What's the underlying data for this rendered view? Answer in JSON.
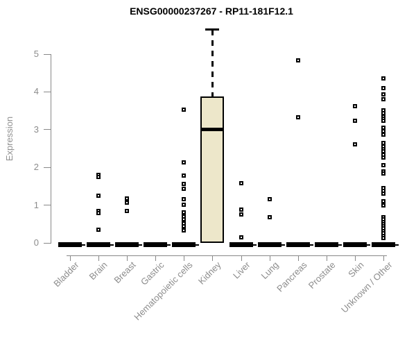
{
  "chart_data": {
    "type": "boxplot",
    "title": "ENSG00000237267 - RP11-181F12.1",
    "ylabel": "Expression",
    "xlabel": "",
    "ylim": [
      0,
      5.8
    ],
    "yticks": [
      0,
      1,
      2,
      3,
      4,
      5
    ],
    "grid": false,
    "legend": "none",
    "marker": "open-square",
    "colors": {
      "box_fill": "#ede7ca",
      "box_line": "#000000",
      "axis": "#888888",
      "tick_label": "#8c8c8c",
      "title": "#000000"
    },
    "categories": [
      "Bladder",
      "Brain",
      "Breast",
      "Gastric",
      "Hematopoietic cells",
      "Kidney",
      "Liver",
      "Lung",
      "Pancreas",
      "Prostate",
      "Skin",
      "Unknown / Other"
    ],
    "boxes": [
      {
        "category": "Bladder",
        "q1": 0,
        "median": 0,
        "q3": 0,
        "whisker_low": 0,
        "whisker_high": 0,
        "outliers": []
      },
      {
        "category": "Brain",
        "q1": 0,
        "median": 0,
        "q3": 0,
        "whisker_low": 0,
        "whisker_high": 0,
        "outliers": [
          1.8,
          1.74,
          1.25,
          0.84,
          0.79,
          0.35
        ]
      },
      {
        "category": "Breast",
        "q1": 0,
        "median": 0,
        "q3": 0,
        "whisker_low": 0,
        "whisker_high": 0,
        "outliers": [
          1.17,
          1.06,
          0.84
        ]
      },
      {
        "category": "Gastric",
        "q1": 0,
        "median": 0,
        "q3": 0,
        "whisker_low": 0,
        "whisker_high": 0,
        "outliers": []
      },
      {
        "category": "Hematopoietic cells",
        "q1": 0,
        "median": 0,
        "q3": 0,
        "whisker_low": 0,
        "whisker_high": 0,
        "outliers": [
          3.53,
          2.14,
          1.79,
          1.57,
          1.43,
          1.15,
          1.02,
          0.8,
          0.7,
          0.63,
          0.52,
          0.44,
          0.33
        ]
      },
      {
        "category": "Kidney",
        "q1": 0,
        "median": 3.0,
        "q3": 3.88,
        "whisker_low": 0,
        "whisker_high": 5.64,
        "outliers": []
      },
      {
        "category": "Liver",
        "q1": 0,
        "median": 0,
        "q3": 0,
        "whisker_low": 0,
        "whisker_high": 0,
        "outliers": [
          1.58,
          0.88,
          0.76,
          0.15
        ]
      },
      {
        "category": "Lung",
        "q1": 0,
        "median": 0,
        "q3": 0,
        "whisker_low": 0,
        "whisker_high": 0,
        "outliers": [
          1.16,
          0.68
        ]
      },
      {
        "category": "Pancreas",
        "q1": 0,
        "median": 0,
        "q3": 0,
        "whisker_low": 0,
        "whisker_high": 0,
        "outliers": [
          4.84,
          3.33
        ]
      },
      {
        "category": "Prostate",
        "q1": 0,
        "median": 0,
        "q3": 0,
        "whisker_low": 0,
        "whisker_high": 0,
        "outliers": []
      },
      {
        "category": "Skin",
        "q1": 0,
        "median": 0,
        "q3": 0,
        "whisker_low": 0,
        "whisker_high": 0,
        "outliers": [
          3.63,
          3.24,
          2.61
        ]
      },
      {
        "category": "Unknown / Other",
        "q1": 0,
        "median": 0,
        "q3": 0,
        "whisker_low": 0,
        "whisker_high": 0,
        "outliers": [
          4.35,
          4.1,
          3.94,
          3.8,
          3.52,
          3.44,
          3.35,
          3.29,
          3.24,
          3.06,
          2.96,
          2.86,
          2.64,
          2.56,
          2.49,
          2.42,
          2.34,
          2.26,
          2.06,
          1.9,
          1.84,
          1.45,
          1.37,
          1.3,
          1.1,
          0.99,
          0.68,
          0.62,
          0.56,
          0.5,
          0.44,
          0.38,
          0.31,
          0.25,
          0.18,
          0.12
        ]
      }
    ]
  }
}
